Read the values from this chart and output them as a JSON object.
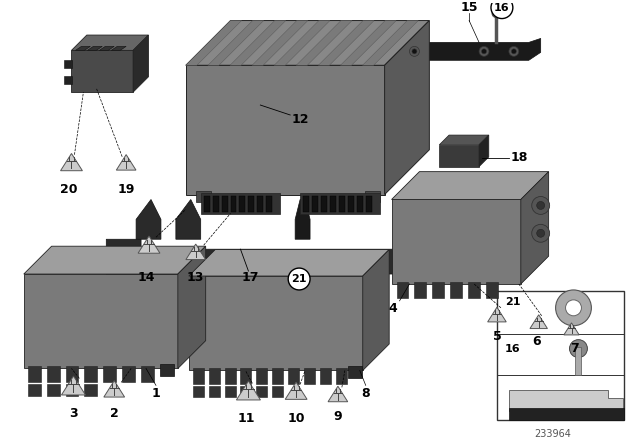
{
  "background_color": "#ffffff",
  "diagram_id": "233964",
  "gray_face": "#7a7a7a",
  "gray_top": "#9e9e9e",
  "gray_side": "#5a5a5a",
  "dark_face": "#4a4a4a",
  "dark_top": "#666666",
  "dark_side": "#2a2a2a",
  "connector_color": "#2a2a2a",
  "tri_fill": "#cccccc",
  "tri_edge": "#666666",
  "plug_color": "#555555",
  "text_color": "#000000",
  "line_color": "#000000"
}
